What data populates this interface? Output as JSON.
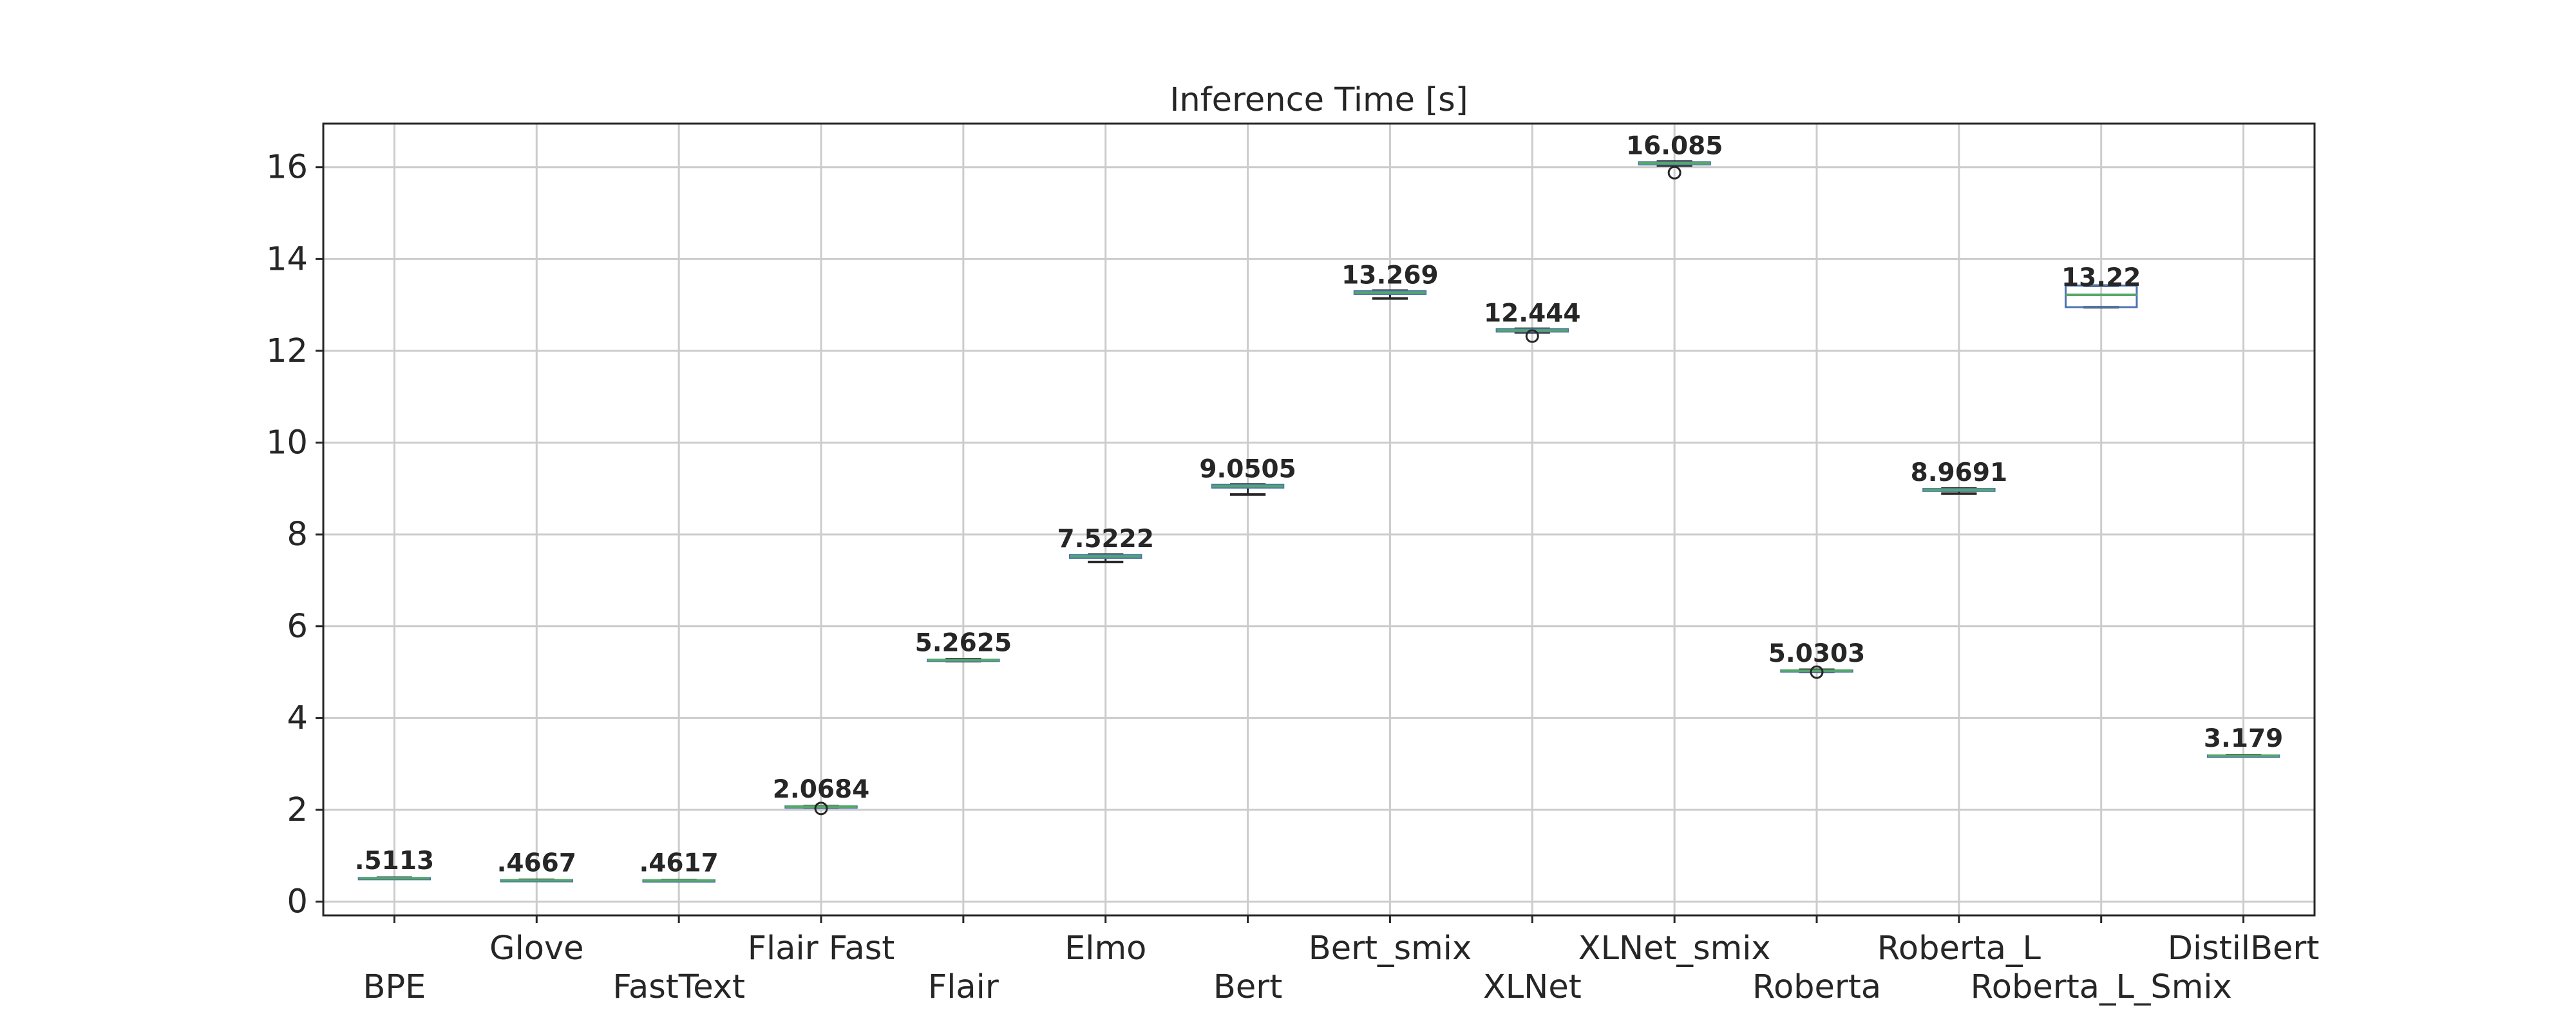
{
  "chart_data": {
    "type": "box",
    "title": "Inference Time [s]",
    "xlabel": "",
    "ylabel": "",
    "ylim": [
      -0.3,
      16.95
    ],
    "yticks": [
      0,
      2,
      4,
      6,
      8,
      10,
      12,
      14,
      16
    ],
    "ytick_labels": [
      "0",
      "2",
      "4",
      "6",
      "8",
      "10",
      "12",
      "14",
      "16"
    ],
    "grid": true,
    "series": [
      {
        "category": "BPE",
        "median": 0.5113,
        "q1": 0.505,
        "q3": 0.515,
        "whisker_low": 0.5,
        "whisker_high": 0.52,
        "outliers": [],
        "label": ".5113"
      },
      {
        "category": "Glove",
        "median": 0.4667,
        "q1": 0.46,
        "q3": 0.47,
        "whisker_low": 0.455,
        "whisker_high": 0.475,
        "outliers": [],
        "label": ".4667"
      },
      {
        "category": "FastText",
        "median": 0.4617,
        "q1": 0.455,
        "q3": 0.465,
        "whisker_low": 0.45,
        "whisker_high": 0.47,
        "outliers": [],
        "label": ".4617"
      },
      {
        "category": "Flair Fast",
        "median": 2.0684,
        "q1": 2.06,
        "q3": 2.075,
        "whisker_low": 2.05,
        "whisker_high": 2.08,
        "outliers": [
          2.03
        ],
        "label": "2.0684"
      },
      {
        "category": "Flair",
        "median": 5.2625,
        "q1": 5.25,
        "q3": 5.27,
        "whisker_low": 5.24,
        "whisker_high": 5.28,
        "outliers": [],
        "label": "5.2625"
      },
      {
        "category": "Elmo",
        "median": 7.5222,
        "q1": 7.49,
        "q3": 7.55,
        "whisker_low": 7.4,
        "whisker_high": 7.56,
        "outliers": [],
        "label": "7.5222"
      },
      {
        "category": "Bert",
        "median": 9.0505,
        "q1": 9.02,
        "q3": 9.08,
        "whisker_low": 8.87,
        "whisker_high": 9.09,
        "outliers": [],
        "label": "9.0505"
      },
      {
        "category": "Bert_smix",
        "median": 13.269,
        "q1": 13.24,
        "q3": 13.3,
        "whisker_low": 13.14,
        "whisker_high": 13.31,
        "outliers": [],
        "label": "13.269"
      },
      {
        "category": "XLNet",
        "median": 12.444,
        "q1": 12.42,
        "q3": 12.47,
        "whisker_low": 12.4,
        "whisker_high": 12.48,
        "outliers": [
          12.32
        ],
        "label": "12.444"
      },
      {
        "category": "XLNet_smix",
        "median": 16.085,
        "q1": 16.06,
        "q3": 16.11,
        "whisker_low": 16.04,
        "whisker_high": 16.12,
        "outliers": [
          15.88
        ],
        "label": "16.085"
      },
      {
        "category": "Roberta",
        "median": 5.0303,
        "q1": 5.02,
        "q3": 5.04,
        "whisker_low": 5.01,
        "whisker_high": 5.05,
        "outliers": [
          5.0
        ],
        "label": "5.0303"
      },
      {
        "category": "Roberta_L",
        "median": 8.9691,
        "q1": 8.95,
        "q3": 8.99,
        "whisker_low": 8.89,
        "whisker_high": 9.0,
        "outliers": [],
        "label": "8.9691"
      },
      {
        "category": "Roberta_L_Smix",
        "median": 13.22,
        "q1": 12.95,
        "q3": 13.42,
        "whisker_low": 12.95,
        "whisker_high": 13.42,
        "outliers": [],
        "label": "13.22"
      },
      {
        "category": "DistilBert",
        "median": 3.179,
        "q1": 3.17,
        "q3": 3.185,
        "whisker_low": 3.165,
        "whisker_high": 3.19,
        "outliers": [],
        "label": "3.179"
      }
    ],
    "colors": {
      "box": "#4c72b0",
      "median": "#55a868",
      "whisker": "#262626",
      "grid": "#cccccc"
    }
  }
}
